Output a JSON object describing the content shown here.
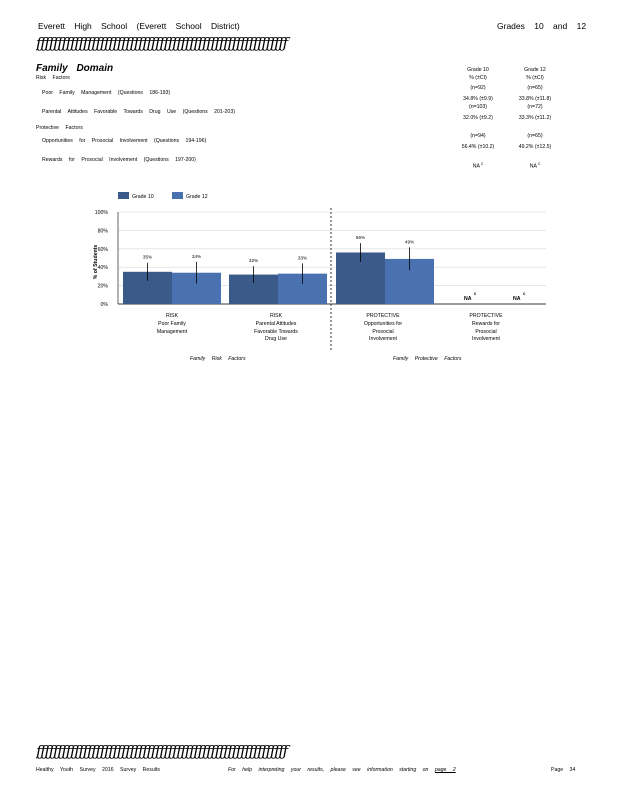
{
  "header": {
    "school": "Everett High School (Everett School District)",
    "grades": "Grades 10 and 12",
    "rule": "ƒƒƒƒƒƒƒƒƒƒƒƒƒƒƒƒƒƒƒƒƒƒƒƒƒƒƒƒƒƒƒƒƒƒƒƒƒƒƒƒƒƒƒƒƒƒƒƒƒƒƒƒƒƒƒƒƒƒƒ"
  },
  "domain": {
    "title": "Family Domain",
    "risk_label": "Risk Factors",
    "protective_label": "Protective Factors"
  },
  "columns": {
    "g10": {
      "grade": "Grade 10",
      "unit": "% (±CI)"
    },
    "g12": {
      "grade": "Grade 12",
      "unit": "% (±CI)"
    }
  },
  "rows": [
    {
      "label": "Poor Family Management",
      "questions": "(Questions 186-193)",
      "g10": {
        "n": "(n=92)",
        "pct": "34.8%",
        "ci": "(±9.9)"
      },
      "g12": {
        "n": "(n=65)",
        "pct": "33.8%",
        "ci": "(±11.8)"
      }
    },
    {
      "label": "Parental Attitudes Favorable Towards Drug Use",
      "questions": "(Questions 201-203)",
      "g10": {
        "n": "(n=103)",
        "pct": "32.0%",
        "ci": "(±9.2)"
      },
      "g12": {
        "n": "(n=72)",
        "pct": "33.3%",
        "ci": "(±11.2)"
      }
    },
    {
      "label": "Opportunities for Prosocial Involvement",
      "questions": "(Questions 194-196)",
      "g10": {
        "n": "(n=94)",
        "pct": "56.4%",
        "ci": "(±10.2)"
      },
      "g12": {
        "n": "(n=65)",
        "pct": "49.2%",
        "ci": "(±12.5)"
      }
    },
    {
      "label": "Rewards for Prosocial Involvement",
      "questions": "(Questions 197-200)",
      "g10": {
        "na": "NA",
        "sup": "c"
      },
      "g12": {
        "na": "NA",
        "sup": "c"
      }
    }
  ],
  "chart_data": {
    "type": "bar",
    "ylabel": "% of Students",
    "yticks": [
      "0%",
      "20%",
      "40%",
      "60%",
      "80%",
      "100%"
    ],
    "ylim": [
      0,
      100
    ],
    "grid": true,
    "legend_position": "top-left",
    "categories": [
      "RISK Poor Family Management",
      "RISK Parental Attitudes Favorable Towards Drug Use",
      "PROTECTIVE Opportunities for Prosocial Involvement",
      "PROTECTIVE Rewards for Prosocial Involvement"
    ],
    "category_lines": [
      [
        "RISK",
        "Poor Family",
        "Management"
      ],
      [
        "RISK",
        "Parental Attitudes",
        "Favorable Towards",
        "Drug Use"
      ],
      [
        "PROTECTIVE",
        "Opportunities for",
        "Prosocial",
        "Involvement"
      ],
      [
        "PROTECTIVE",
        "Rewards for",
        "Prosocial",
        "Involvement"
      ]
    ],
    "series": [
      {
        "name": "Grade 10",
        "color": "#3a5a8a",
        "values": [
          35,
          32,
          56,
          null
        ],
        "ci": [
          9.9,
          9.2,
          10.2,
          null
        ],
        "labels": [
          "35%",
          "32%",
          "56%",
          "NA"
        ]
      },
      {
        "name": "Grade 12",
        "color": "#4a72b0",
        "values": [
          34,
          33,
          49,
          null
        ],
        "ci": [
          11.8,
          11.2,
          12.5,
          null
        ],
        "labels": [
          "34%",
          "33%",
          "49%",
          "NA"
        ]
      }
    ],
    "na_superscript": "c",
    "group_labels": [
      "Family Risk Factors",
      "Family Protective Factors"
    ]
  },
  "footer": {
    "rule": "ƒƒƒƒƒƒƒƒƒƒƒƒƒƒƒƒƒƒƒƒƒƒƒƒƒƒƒƒƒƒƒƒƒƒƒƒƒƒƒƒƒƒƒƒƒƒƒƒƒƒƒƒƒƒƒƒƒƒƒ",
    "survey": "Healthy Youth Survey 2016 Survey Results",
    "help": "For help interpreting your results, please see information starting on",
    "help_link": "page 2",
    "page": "Page 34"
  }
}
